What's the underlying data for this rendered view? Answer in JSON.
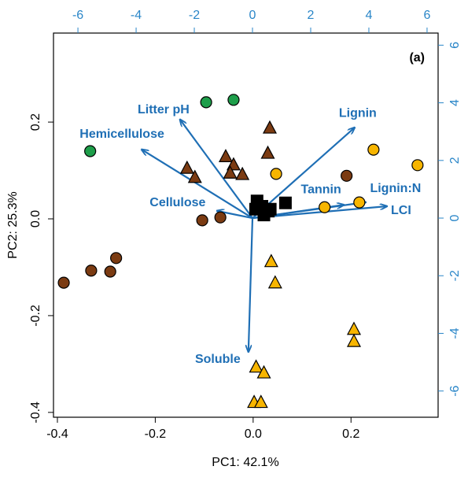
{
  "chart_data": {
    "type": "biplot",
    "tag": "(a)",
    "xlabel": "PC1: 42.1%",
    "ylabel": "PC2: 25.3%",
    "xlim": [
      -0.408,
      0.378
    ],
    "ylim": [
      -0.41,
      0.384
    ],
    "xticks": [
      -0.4,
      -0.2,
      {
        "value": 0,
        "label": "0.0"
      },
      0.2
    ],
    "yticks": [
      -0.4,
      -0.2,
      {
        "value": 0,
        "label": "0.0"
      },
      0.2
    ],
    "x2lim": [
      -6.84,
      6.38
    ],
    "y2lim": [
      -6.91,
      6.42
    ],
    "x2ticks": [
      -6,
      -4,
      -2,
      0,
      2,
      4,
      6
    ],
    "y2ticks": [
      -6,
      -4,
      -2,
      0,
      2,
      4,
      6
    ],
    "axis2_color": "#2a86c8",
    "series": [
      {
        "marker": "circle",
        "color": "#1e9e4a",
        "x": [
          -0.096,
          -0.04,
          -0.333
        ],
        "values": [
          0.241,
          0.246,
          0.14
        ]
      },
      {
        "marker": "triangle",
        "color": "#7b3b12",
        "x": [
          0.034,
          0.03,
          -0.135,
          -0.119,
          -0.056,
          -0.04,
          -0.022,
          -0.047
        ],
        "values": [
          0.187,
          0.135,
          0.104,
          0.085,
          0.128,
          0.111,
          0.091,
          0.094
        ]
      },
      {
        "marker": "circle",
        "color": "#7b3b12",
        "x": [
          -0.387,
          -0.331,
          -0.292,
          -0.28,
          -0.104,
          -0.067,
          0.191
        ],
        "values": [
          -0.132,
          -0.107,
          -0.109,
          -0.081,
          -0.003,
          0.003,
          0.089
        ]
      },
      {
        "marker": "circle",
        "color": "#f7b500",
        "x": [
          0.047,
          0.246,
          0.336,
          0.146,
          0.217
        ],
        "values": [
          0.093,
          0.143,
          0.111,
          0.024,
          0.034
        ]
      },
      {
        "marker": "triangle",
        "color": "#f7b500",
        "x": [
          0.037,
          0.045,
          0.206,
          0.206,
          0.006,
          0.022,
          0.002,
          0.016
        ],
        "values": [
          -0.089,
          -0.133,
          -0.229,
          -0.254,
          -0.307,
          -0.319,
          -0.38,
          -0.38
        ]
      },
      {
        "marker": "square",
        "color": "#000000",
        "x": [
          0.008,
          0.018,
          0.005,
          0.031,
          0.035,
          0.066,
          0.022,
          0.013
        ],
        "values": [
          0.037,
          0.026,
          0.02,
          0.016,
          0.02,
          0.033,
          0.008,
          0.024
        ]
      }
    ],
    "loadings": {
      "color": "#1f6fb5",
      "labels": [
        "Litter pH",
        "Hemicellulose",
        "Cellulose",
        "Lignin",
        "Tannin",
        "Lignin:N",
        "LCI",
        "Soluble"
      ],
      "x": [
        -2.49,
        -3.81,
        -1.22,
        3.51,
        3.14,
        3.89,
        4.62,
        -0.14
      ],
      "y": [
        3.42,
        2.38,
        0.25,
        3.14,
        0.46,
        0.55,
        0.41,
        -4.64
      ]
    }
  }
}
